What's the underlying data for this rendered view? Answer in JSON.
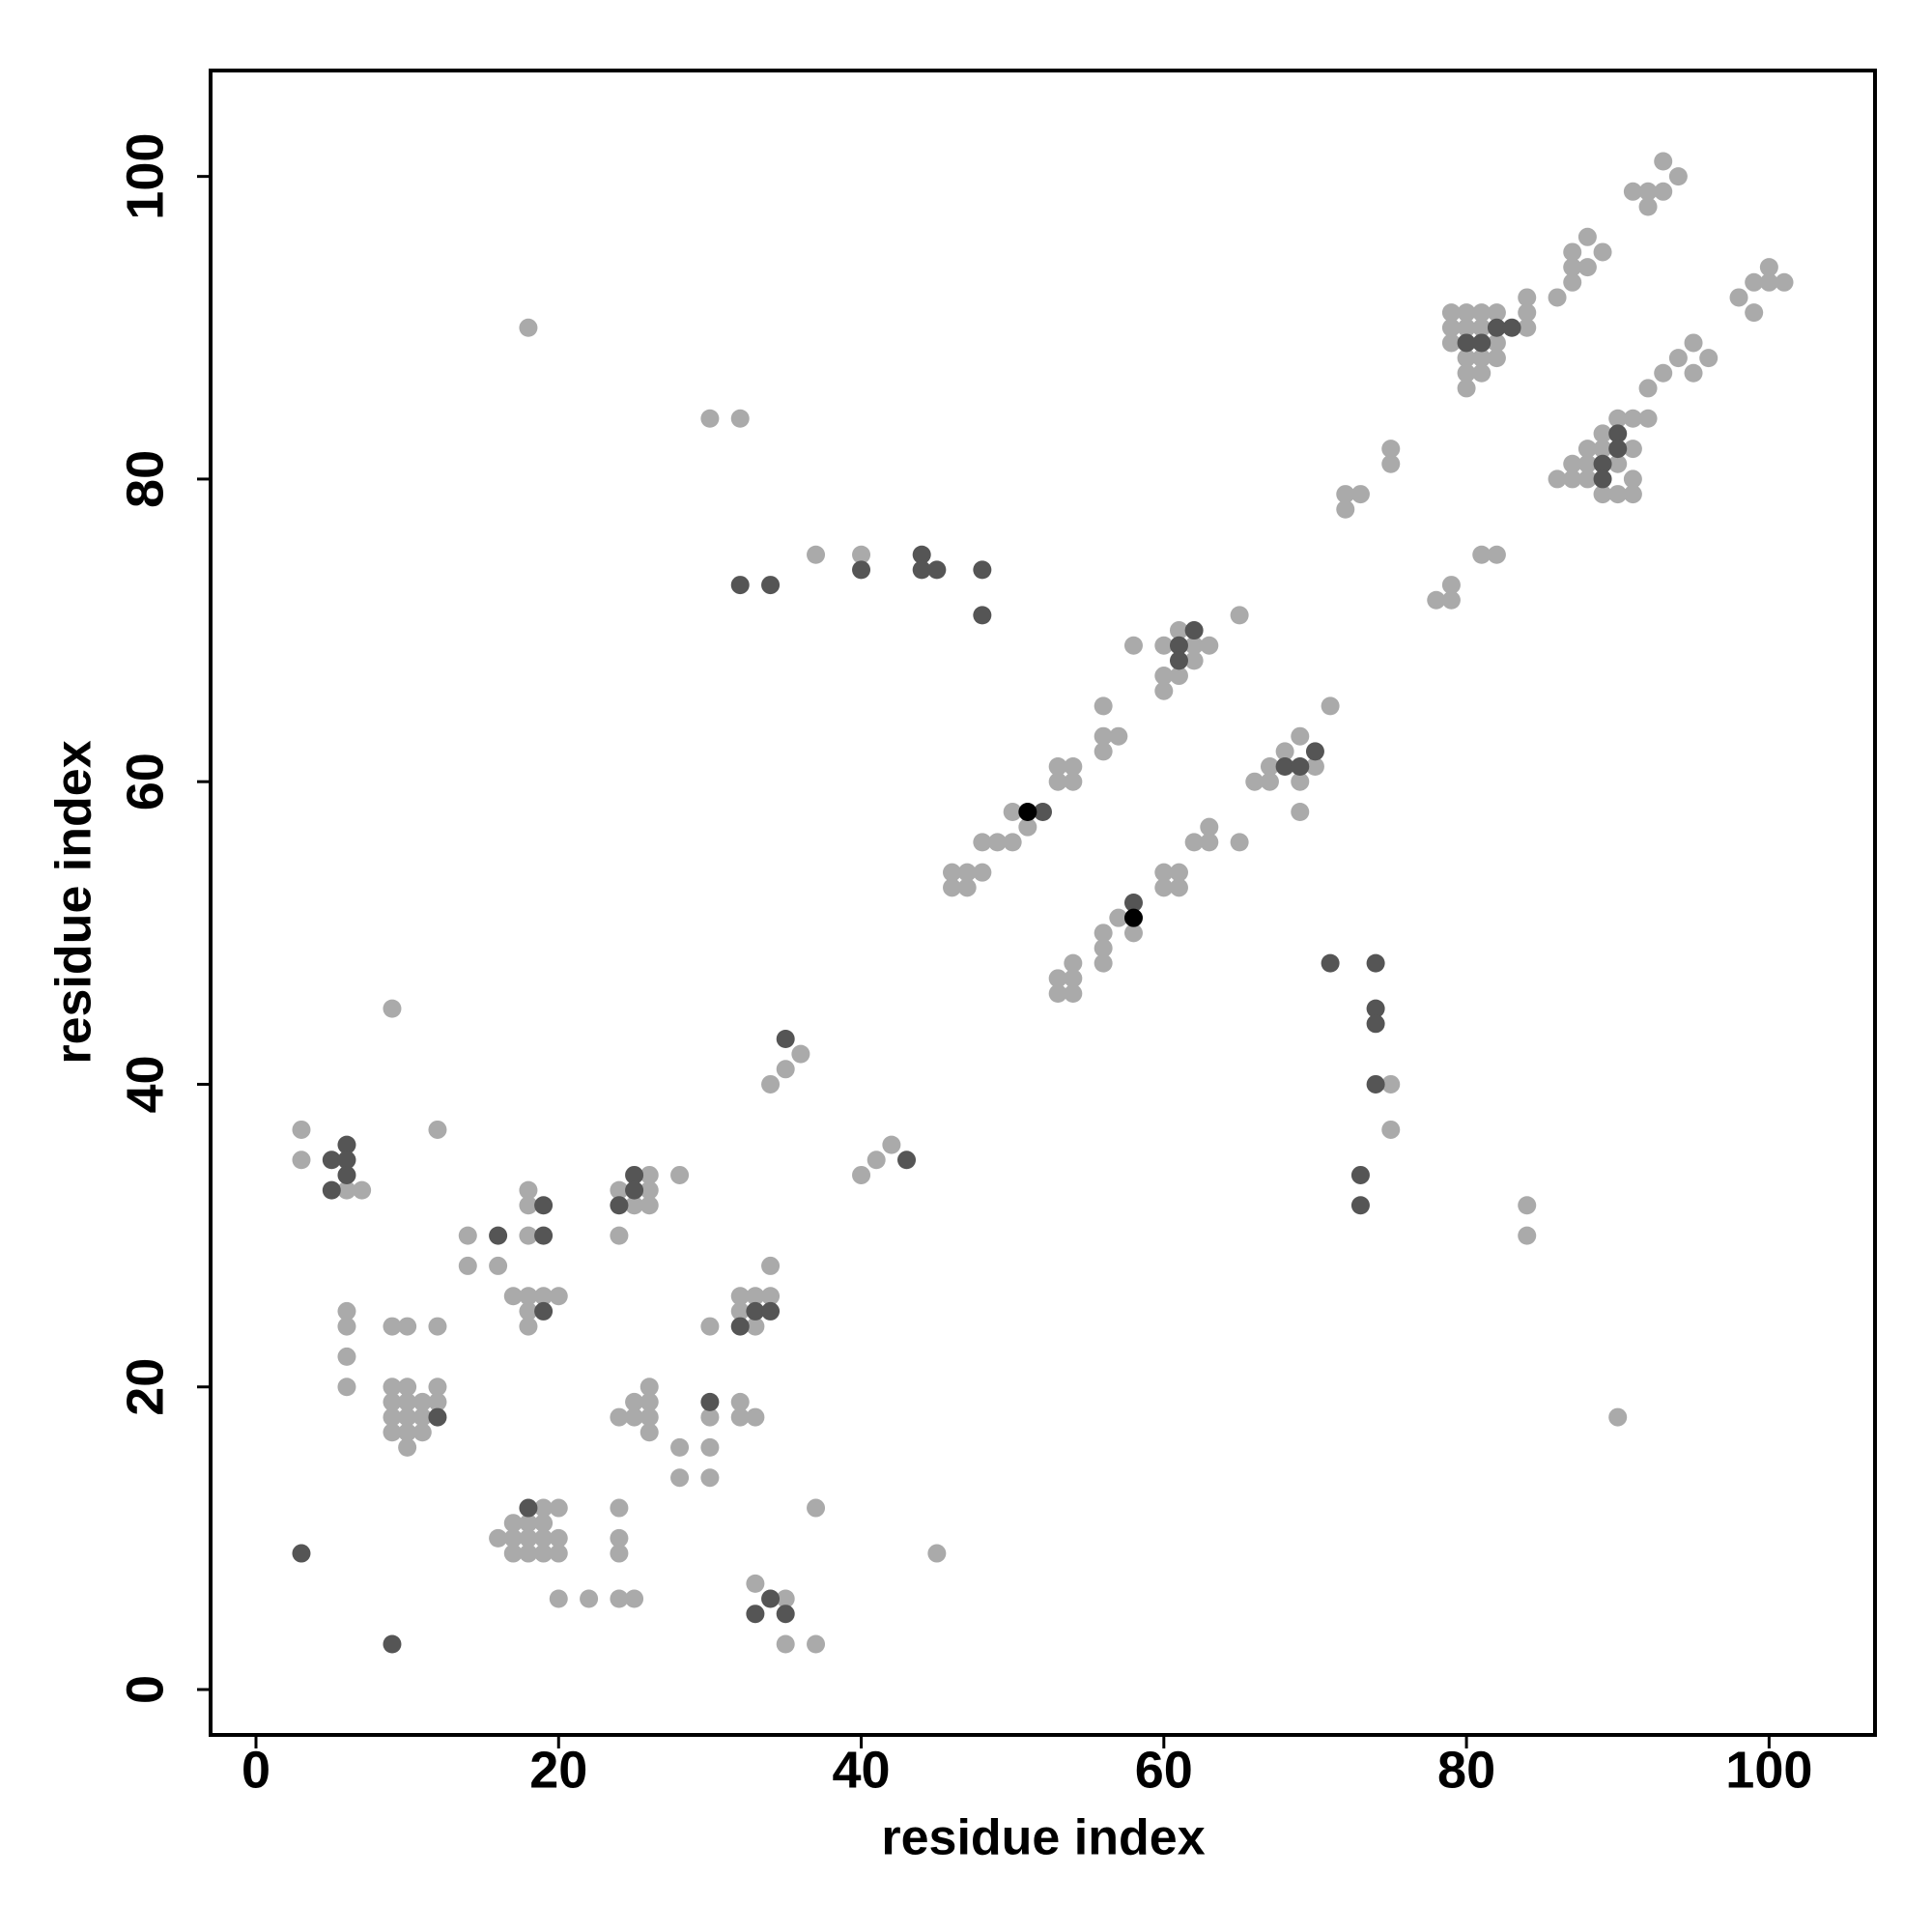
{
  "chart_data": {
    "type": "scatter",
    "xlabel": "residue index",
    "ylabel": "residue index",
    "xlim": [
      -3,
      107
    ],
    "ylim": [
      -3,
      107
    ],
    "xticks": [
      0,
      20,
      40,
      60,
      80,
      100
    ],
    "yticks": [
      0,
      20,
      40,
      60,
      80,
      100
    ],
    "series": [
      {
        "color": "#aaaaaa",
        "x": [
          93,
          91,
          92,
          93,
          94,
          92,
          98,
          99,
          100,
          101,
          99,
          100,
          86,
          87,
          87,
          88,
          88,
          89,
          87,
          84,
          84,
          84,
          80,
          81,
          80,
          81,
          79,
          79,
          79,
          82,
          82,
          82,
          81,
          80,
          80,
          81,
          80,
          93,
          94,
          95,
          96,
          95,
          92,
          91,
          92,
          90,
          86,
          87,
          87,
          88,
          88,
          88,
          89,
          89,
          89,
          90,
          91,
          91,
          90,
          91,
          75,
          75,
          72,
          73,
          72,
          78,
          79,
          79,
          81,
          82,
          65,
          58,
          60,
          61,
          62,
          63,
          60,
          61,
          60,
          62,
          56,
          56,
          57,
          56,
          53,
          54,
          53,
          54,
          50,
          51,
          48,
          49,
          50,
          46,
          47,
          48,
          46,
          47,
          71,
          69,
          68,
          67,
          66,
          67,
          69,
          70,
          69,
          65,
          62,
          63,
          63,
          60,
          61,
          60,
          61,
          57,
          58,
          56,
          56,
          56,
          54,
          53,
          54,
          53,
          54,
          18,
          30,
          32,
          37,
          40,
          75,
          75,
          84,
          84,
          90,
          9,
          34,
          35,
          36,
          40,
          41,
          42,
          45,
          3,
          3,
          6,
          7,
          12,
          14,
          14,
          16,
          18,
          18,
          18,
          17,
          18,
          19,
          20,
          18,
          18,
          6,
          6,
          6,
          6,
          9,
          10,
          12,
          9,
          10,
          12,
          9,
          10,
          11,
          9,
          10,
          11,
          9,
          10,
          11,
          10,
          12,
          24,
          26,
          26,
          26,
          25,
          28,
          24,
          30,
          32,
          33,
          34,
          32,
          33,
          34,
          24,
          25,
          26,
          26,
          26,
          25,
          26,
          30,
          32,
          32,
          33,
          28,
          28,
          30,
          30,
          24,
          24,
          24,
          37,
          16,
          17,
          17,
          19,
          20,
          18,
          19,
          18,
          19,
          20,
          18,
          19,
          20,
          17,
          20,
          22,
          24,
          25,
          33,
          35,
          35,
          37
        ],
        "y": [
          101,
          99,
          99,
          99,
          100,
          98,
          92,
          93,
          94,
          93,
          91,
          93,
          92,
          93,
          95,
          96,
          94,
          95,
          94,
          92,
          91,
          90,
          91,
          91,
          90,
          90,
          91,
          90,
          89,
          91,
          89,
          88,
          88,
          88,
          87,
          87,
          86,
          87,
          88,
          89,
          88,
          87,
          86,
          84,
          84,
          84,
          80,
          81,
          80,
          82,
          81,
          80,
          83,
          82,
          79,
          79,
          79,
          80,
          81,
          82,
          82,
          81,
          79,
          79,
          78,
          72,
          73,
          72,
          75,
          75,
          71,
          69,
          69,
          70,
          69,
          69,
          67,
          67,
          66,
          68,
          65,
          63,
          63,
          62,
          61,
          61,
          60,
          60,
          58,
          57,
          56,
          56,
          56,
          54,
          54,
          54,
          53,
          53,
          65,
          63,
          62,
          61,
          60,
          60,
          60,
          61,
          58,
          56,
          56,
          56,
          57,
          54,
          54,
          53,
          53,
          51,
          50,
          50,
          49,
          48,
          48,
          47,
          47,
          46,
          46,
          90,
          84,
          84,
          75,
          75,
          40,
          37,
          32,
          30,
          18,
          45,
          40,
          41,
          42,
          34,
          35,
          36,
          9,
          37,
          35,
          33,
          33,
          37,
          30,
          28,
          28,
          33,
          32,
          30,
          26,
          26,
          26,
          26,
          25,
          24,
          25,
          24,
          22,
          20,
          24,
          24,
          24,
          20,
          20,
          20,
          19,
          19,
          19,
          18,
          18,
          18,
          17,
          17,
          17,
          16,
          19,
          33,
          34,
          33,
          32,
          32,
          34,
          30,
          24,
          26,
          26,
          26,
          25,
          24,
          28,
          18,
          19,
          20,
          19,
          18,
          18,
          17,
          18,
          19,
          18,
          18,
          16,
          14,
          16,
          14,
          12,
          10,
          9,
          12,
          10,
          11,
          9,
          12,
          12,
          11,
          11,
          10,
          10,
          10,
          9,
          9,
          9,
          10,
          6,
          6,
          6,
          6,
          7,
          6,
          3,
          3
        ]
      },
      {
        "color": "#555555",
        "x": [
          80,
          81,
          82,
          83,
          89,
          89,
          90,
          90,
          61,
          61,
          62,
          52,
          68,
          69,
          70,
          58,
          32,
          34,
          40,
          44,
          44,
          45,
          48,
          48,
          71,
          74,
          74,
          74,
          74,
          73,
          73,
          35,
          43,
          5,
          6,
          6,
          6,
          5,
          16,
          19,
          19,
          19,
          24,
          25,
          25,
          12,
          32,
          33,
          34,
          30,
          18,
          34,
          33,
          35,
          3,
          9
        ],
        "y": [
          89,
          89,
          90,
          90,
          81,
          80,
          83,
          82,
          69,
          68,
          70,
          58,
          61,
          61,
          62,
          52,
          73,
          73,
          74,
          75,
          74,
          74,
          74,
          71,
          48,
          48,
          45,
          44,
          40,
          34,
          32,
          43,
          35,
          35,
          36,
          35,
          34,
          33,
          30,
          32,
          30,
          25,
          32,
          34,
          33,
          18,
          24,
          25,
          25,
          19,
          12,
          6,
          5,
          5,
          9,
          3
        ]
      },
      {
        "color": "#000000",
        "x": [
          51,
          58
        ],
        "y": [
          58,
          51
        ]
      }
    ]
  }
}
